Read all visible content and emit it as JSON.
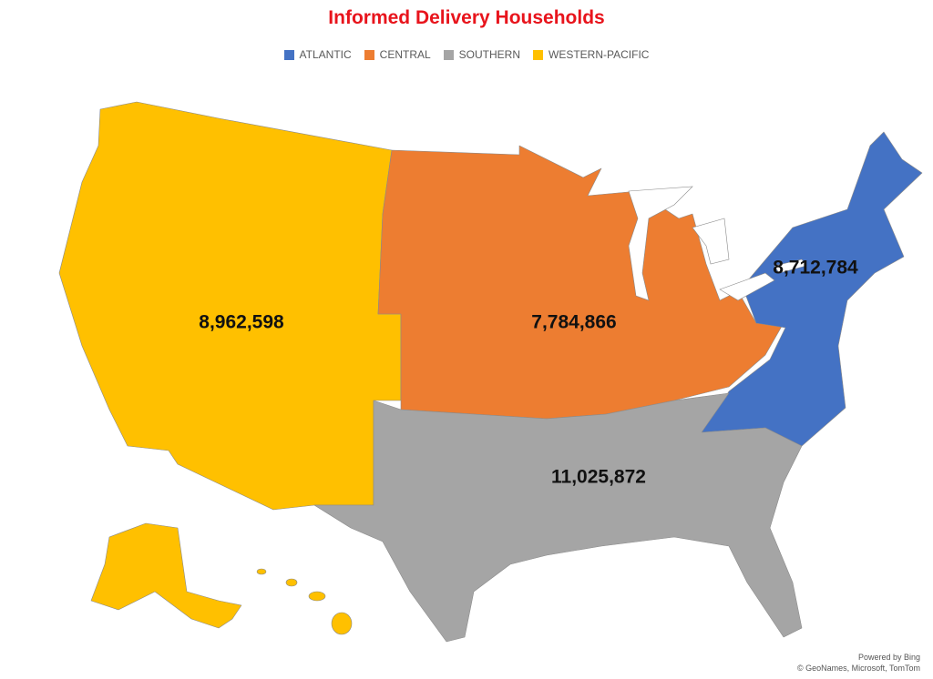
{
  "title": "Informed Delivery Households",
  "regions": [
    {
      "name": "ATLANTIC",
      "color": "#4472c4",
      "value": 8712784,
      "value_label": "8,712,784"
    },
    {
      "name": "CENTRAL",
      "color": "#ed7d31",
      "value": 7784866,
      "value_label": "7,784,866"
    },
    {
      "name": "SOUTHERN",
      "color": "#a5a5a5",
      "value": 11025872,
      "value_label": "11,025,872"
    },
    {
      "name": "WESTERN-PACIFIC",
      "color": "#ffc000",
      "value": 8962598,
      "value_label": "8,962,598"
    }
  ],
  "attribution": [
    "Powered by Bing",
    "© GeoNames, Microsoft, TomTom"
  ]
}
